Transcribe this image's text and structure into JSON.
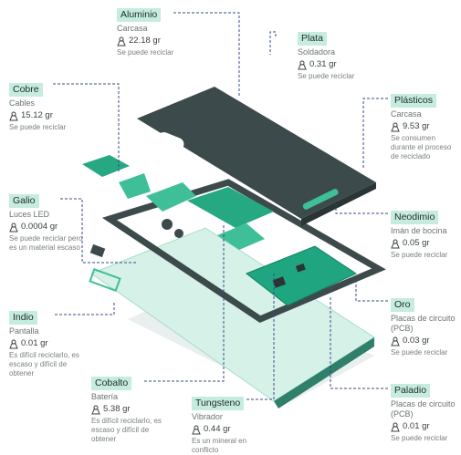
{
  "materials": [
    {
      "name": "Aluminio",
      "part": "Carcasa",
      "weight": "22.18 gr",
      "note": "Se puede reciclar"
    },
    {
      "name": "Plata",
      "part": "Soldadora",
      "weight": "0.31 gr",
      "note": "Se puede reciclar"
    },
    {
      "name": "Cobre",
      "part": "Cables",
      "weight": "15.12 gr",
      "note": "Se puede reciclar"
    },
    {
      "name": "Plásticos",
      "part": "Carcasa",
      "weight": "9.53 gr",
      "note": "Se consumen durante el proceso de reciclado"
    },
    {
      "name": "Galio",
      "part": "Luces LED",
      "weight": "0.0004 gr",
      "note": "Se puede reciclar pero es un material escaso"
    },
    {
      "name": "Neodimio",
      "part": "Imán de bocina",
      "weight": "0.05 gr",
      "note": "Se puede reciclar"
    },
    {
      "name": "Indio",
      "part": "Pantalla",
      "weight": "0.01 gr",
      "note": "Es difícil reciclarlo, es escaso y difícil de obtener"
    },
    {
      "name": "Oro",
      "part": "Placas de circuito (PCB)",
      "weight": "0.03 gr",
      "note": "Se puede reciclar"
    },
    {
      "name": "Cobalto",
      "part": "Batería",
      "weight": "5.38 gr",
      "note": "Es difícil reciclarlo, es escaso y difícil de obtener"
    },
    {
      "name": "Tungsteno",
      "part": "Vibrador",
      "weight": "0.44 gr",
      "note": "Es un mineral en conflicto"
    },
    {
      "name": "Paladio",
      "part": "Placas de circuito (PCB)",
      "weight": "0.01 gr",
      "note": "Se puede reciclar"
    }
  ],
  "colors": {
    "tag_bg": "#c6ecdf",
    "dark_case": "#3d4a4b",
    "accent_green": "#1fa57f",
    "glass": "#cdeee4",
    "leader": "#3a4a8a"
  }
}
